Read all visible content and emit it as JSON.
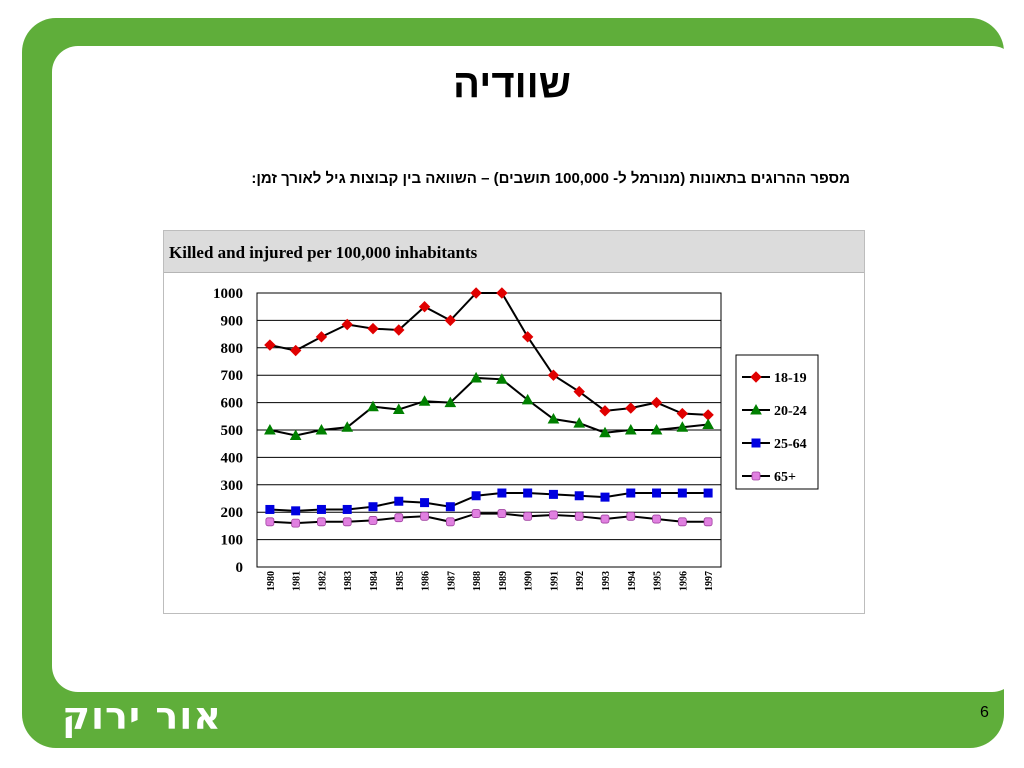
{
  "slide": {
    "title": "שוודיה",
    "subtitle": "מספר ההרוגים בתאונות (מנורמל ל- 100,000 תושבים) – השוואה בין קבוצות גיל לאורך זמן:",
    "brand": "אור ירוק",
    "page_number": "6",
    "frame_color": "#5fae3a"
  },
  "chart_data": {
    "type": "line",
    "title": "Killed and injured per 100,000 inhabitants",
    "xlabel": "",
    "ylabel": "",
    "ylim": [
      0,
      1000
    ],
    "yticks": [
      0,
      100,
      200,
      300,
      400,
      500,
      600,
      700,
      800,
      900,
      1000
    ],
    "grid": true,
    "legend": "right",
    "x": [
      "1980",
      "1981",
      "1982",
      "1983",
      "1984",
      "1985",
      "1986",
      "1987",
      "1988",
      "1989",
      "1990",
      "1991",
      "1992",
      "1993",
      "1994",
      "1995",
      "1996",
      "1997"
    ],
    "series": [
      {
        "name": "18-19",
        "color": "#e00000",
        "marker": "diamond",
        "values": [
          810,
          790,
          840,
          885,
          870,
          865,
          950,
          900,
          1000,
          1000,
          840,
          700,
          640,
          570,
          580,
          600,
          560,
          555
        ]
      },
      {
        "name": "20-24",
        "color": "#008000",
        "marker": "triangle",
        "values": [
          500,
          480,
          500,
          510,
          585,
          575,
          605,
          600,
          690,
          685,
          610,
          540,
          525,
          490,
          500,
          500,
          510,
          520
        ]
      },
      {
        "name": "25-64",
        "color": "#0000e0",
        "marker": "square",
        "values": [
          210,
          205,
          210,
          210,
          220,
          240,
          235,
          220,
          260,
          270,
          270,
          265,
          260,
          255,
          270,
          270,
          270,
          270
        ]
      },
      {
        "name": "65+",
        "color": "#e080e0",
        "marker": "circle",
        "values": [
          165,
          160,
          165,
          165,
          170,
          180,
          185,
          165,
          195,
          195,
          185,
          190,
          185,
          175,
          185,
          175,
          165,
          165
        ]
      }
    ]
  }
}
